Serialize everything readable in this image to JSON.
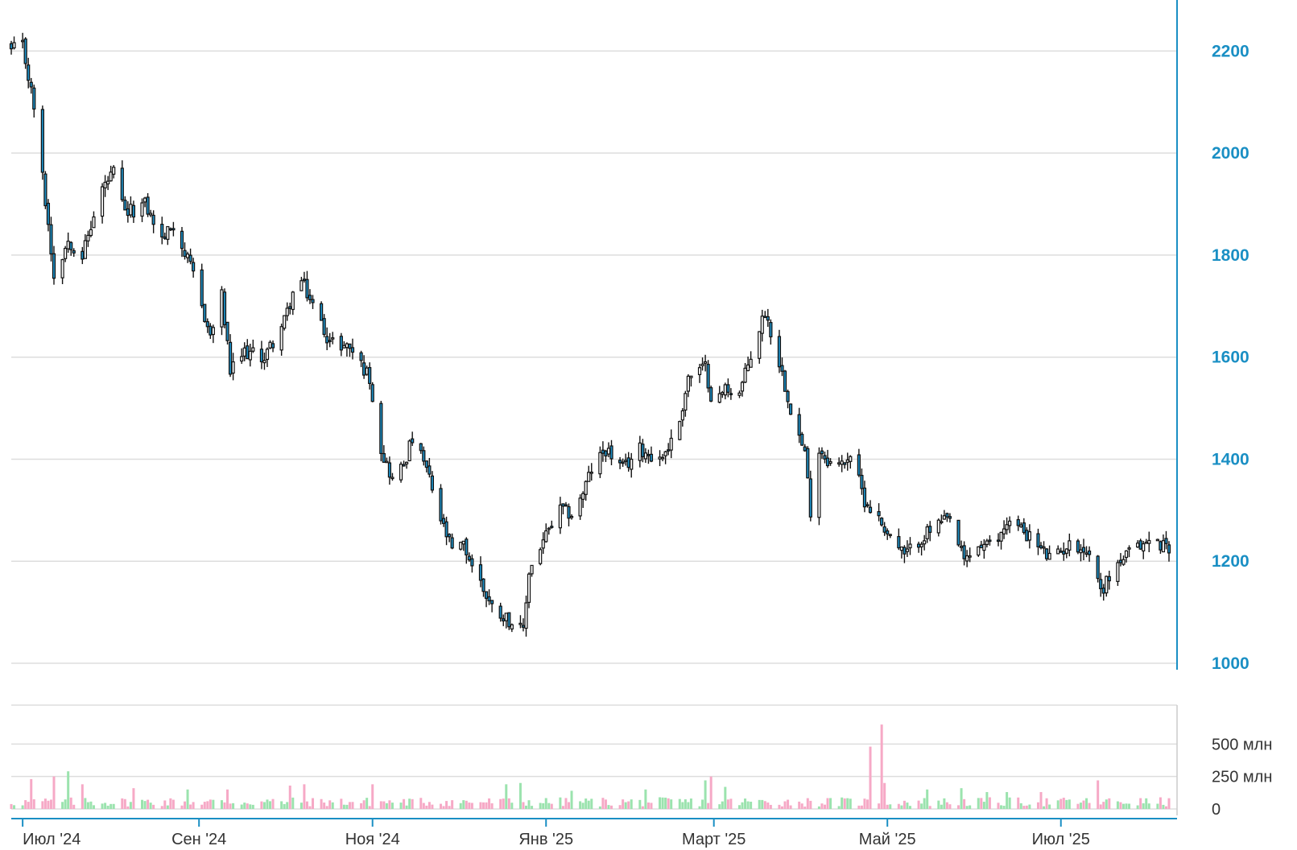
{
  "chart_data": [
    {
      "type": "candlestick",
      "title": "",
      "xlabel": "",
      "ylabel": "",
      "x_range": [
        "2024-06-27",
        "2025-08-08"
      ],
      "ylim": [
        1000,
        2300
      ],
      "ytick_values": [
        1000,
        1200,
        1400,
        1600,
        1800,
        2000,
        2200
      ],
      "ytick_labels": [
        "1000",
        "1200",
        "1400",
        "1600",
        "1800",
        "2000",
        "2200"
      ],
      "xtick_dates": [
        "2024-07-01",
        "2024-09-01",
        "2024-11-01",
        "2025-01-01",
        "2025-03-01",
        "2025-05-01",
        "2025-07-01"
      ],
      "xtick_labels": [
        "Июл '24",
        "Сен '24",
        "Ноя '24",
        "Янв '25",
        "Март '25",
        "Май '25",
        "Июл '25"
      ],
      "grid": true,
      "colors": {
        "up": "#ffffff",
        "down": "#1d8ec3",
        "outline": "#111111",
        "axis": "#1a8fc4",
        "grid": "#dddddd"
      },
      "anchors": [
        [
          "2024-06-27",
          2200
        ],
        [
          "2024-07-01",
          2210
        ],
        [
          "2024-07-05",
          2090
        ],
        [
          "2024-07-10",
          1860
        ],
        [
          "2024-07-12",
          1760
        ],
        [
          "2024-07-17",
          1830
        ],
        [
          "2024-07-22",
          1800
        ],
        [
          "2024-07-29",
          1930
        ],
        [
          "2024-08-02",
          1960
        ],
        [
          "2024-08-06",
          1880
        ],
        [
          "2024-08-13",
          1900
        ],
        [
          "2024-08-19",
          1830
        ],
        [
          "2024-08-23",
          1860
        ],
        [
          "2024-08-30",
          1760
        ],
        [
          "2024-09-05",
          1640
        ],
        [
          "2024-09-09",
          1720
        ],
        [
          "2024-09-12",
          1570
        ],
        [
          "2024-09-17",
          1610
        ],
        [
          "2024-09-24",
          1600
        ],
        [
          "2024-10-01",
          1670
        ],
        [
          "2024-10-06",
          1760
        ],
        [
          "2024-10-12",
          1690
        ],
        [
          "2024-10-17",
          1630
        ],
        [
          "2024-10-24",
          1620
        ],
        [
          "2024-10-31",
          1560
        ],
        [
          "2024-11-04",
          1420
        ],
        [
          "2024-11-08",
          1360
        ],
        [
          "2024-11-12",
          1390
        ],
        [
          "2024-11-15",
          1440
        ],
        [
          "2024-11-20",
          1380
        ],
        [
          "2024-11-25",
          1280
        ],
        [
          "2024-11-29",
          1220
        ],
        [
          "2024-12-03",
          1230
        ],
        [
          "2024-12-08",
          1170
        ],
        [
          "2024-12-13",
          1110
        ],
        [
          "2024-12-18",
          1090
        ],
        [
          "2024-12-24",
          1060
        ],
        [
          "2024-12-26",
          1180
        ],
        [
          "2024-12-31",
          1240
        ],
        [
          "2025-01-06",
          1300
        ],
        [
          "2025-01-11",
          1290
        ],
        [
          "2025-01-17",
          1380
        ],
        [
          "2025-01-22",
          1420
        ],
        [
          "2025-01-28",
          1380
        ],
        [
          "2025-02-03",
          1420
        ],
        [
          "2025-02-10",
          1400
        ],
        [
          "2025-02-16",
          1450
        ],
        [
          "2025-02-20",
          1560
        ],
        [
          "2025-02-26",
          1580
        ],
        [
          "2025-03-01",
          1500
        ],
        [
          "2025-03-05",
          1540
        ],
        [
          "2025-03-10",
          1530
        ],
        [
          "2025-03-15",
          1620
        ],
        [
          "2025-03-19",
          1690
        ],
        [
          "2025-03-24",
          1590
        ],
        [
          "2025-03-29",
          1480
        ],
        [
          "2025-04-02",
          1410
        ],
        [
          "2025-04-04",
          1300
        ],
        [
          "2025-04-07",
          1420
        ],
        [
          "2025-04-13",
          1380
        ],
        [
          "2025-04-18",
          1410
        ],
        [
          "2025-04-23",
          1320
        ],
        [
          "2025-04-27",
          1290
        ],
        [
          "2025-05-02",
          1250
        ],
        [
          "2025-05-07",
          1210
        ],
        [
          "2025-05-12",
          1240
        ],
        [
          "2025-05-18",
          1270
        ],
        [
          "2025-05-23",
          1280
        ],
        [
          "2025-05-28",
          1200
        ],
        [
          "2025-06-02",
          1230
        ],
        [
          "2025-06-08",
          1230
        ],
        [
          "2025-06-12",
          1280
        ],
        [
          "2025-06-18",
          1260
        ],
        [
          "2025-06-23",
          1230
        ],
        [
          "2025-06-28",
          1200
        ],
        [
          "2025-07-03",
          1230
        ],
        [
          "2025-07-08",
          1230
        ],
        [
          "2025-07-13",
          1200
        ],
        [
          "2025-07-15",
          1140
        ],
        [
          "2025-07-20",
          1190
        ],
        [
          "2025-07-26",
          1220
        ],
        [
          "2025-08-01",
          1240
        ],
        [
          "2025-08-08",
          1230
        ]
      ]
    },
    {
      "type": "bar",
      "title": "",
      "xlabel": "",
      "ylabel": "",
      "ylim": [
        0,
        750
      ],
      "ytick_values": [
        0,
        250,
        500
      ],
      "ytick_labels": [
        "0",
        "250 млн",
        "500 млн"
      ],
      "colors": {
        "up": "#9be3ae",
        "down": "#f6a9c6",
        "grid": "#dddddd"
      },
      "typical_volume": 45,
      "spikes": [
        [
          "2024-07-04",
          230
        ],
        [
          "2024-07-12",
          250
        ],
        [
          "2024-07-17",
          290
        ],
        [
          "2024-07-22",
          190
        ],
        [
          "2024-08-09",
          160
        ],
        [
          "2024-08-28",
          150
        ],
        [
          "2024-09-11",
          150
        ],
        [
          "2024-10-03",
          180
        ],
        [
          "2024-10-08",
          190
        ],
        [
          "2024-11-01",
          190
        ],
        [
          "2024-12-18",
          190
        ],
        [
          "2024-12-23",
          200
        ],
        [
          "2025-01-10",
          140
        ],
        [
          "2025-02-05",
          150
        ],
        [
          "2025-02-26",
          220
        ],
        [
          "2025-02-28",
          250
        ],
        [
          "2025-03-05",
          170
        ],
        [
          "2025-03-22",
          210
        ],
        [
          "2025-04-25",
          480
        ],
        [
          "2025-04-27",
          310
        ],
        [
          "2025-04-29",
          650
        ],
        [
          "2025-04-30",
          200
        ],
        [
          "2025-05-03",
          130
        ],
        [
          "2025-05-15",
          150
        ],
        [
          "2025-05-27",
          160
        ],
        [
          "2025-06-05",
          130
        ],
        [
          "2025-06-12",
          130
        ],
        [
          "2025-06-24",
          130
        ],
        [
          "2025-07-14",
          220
        ],
        [
          "2025-07-20",
          170
        ]
      ]
    }
  ]
}
